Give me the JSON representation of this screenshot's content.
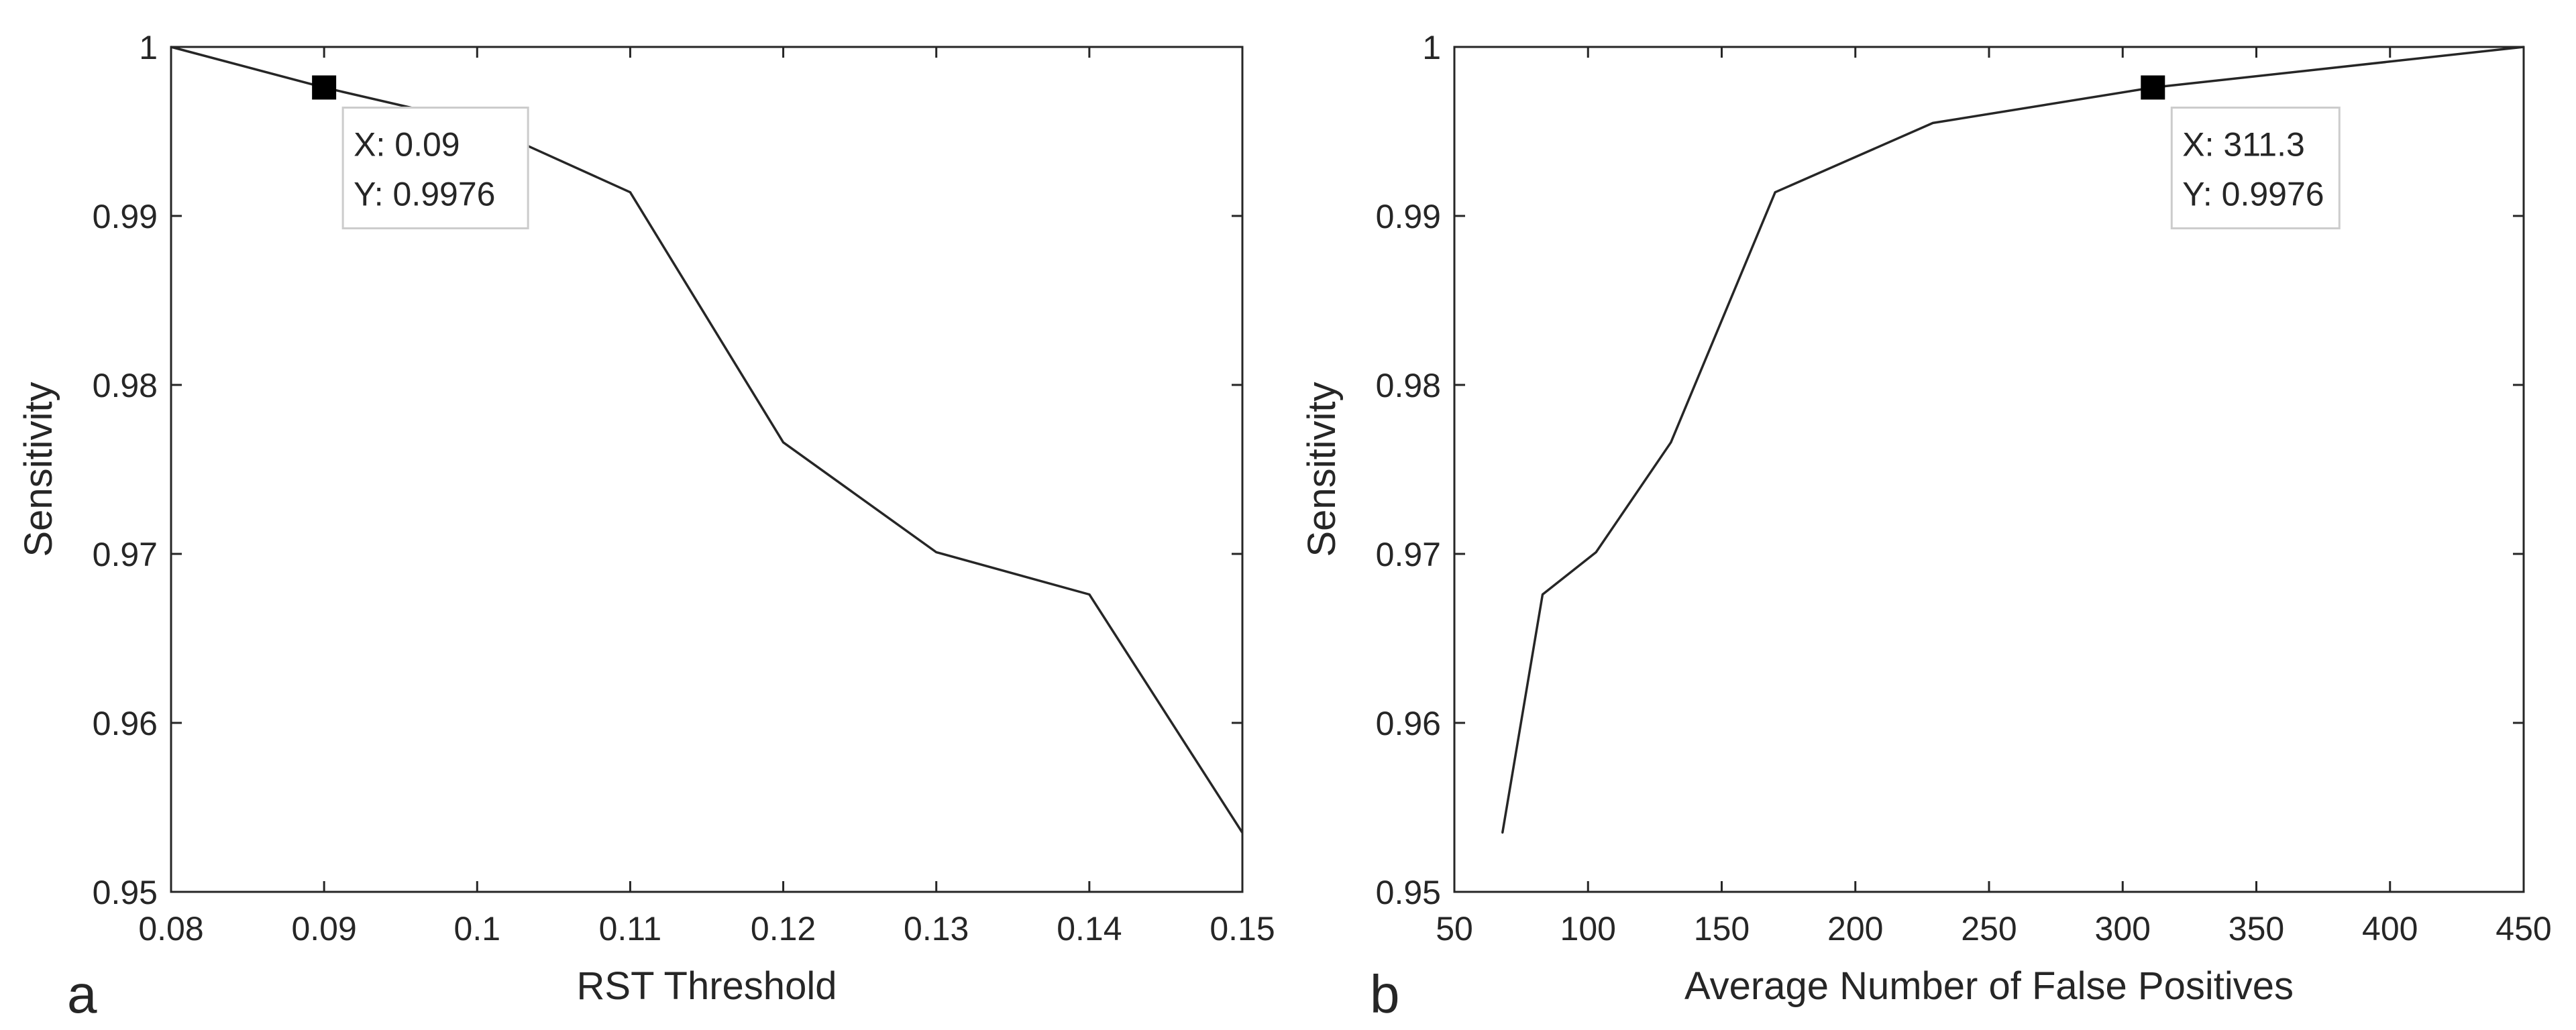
{
  "chart_data": [
    {
      "type": "line",
      "panel_label": "a",
      "xlabel": "RST Threshold",
      "ylabel": "Sensitivity",
      "xlim": [
        0.08,
        0.15
      ],
      "ylim": [
        0.95,
        1.0
      ],
      "x_ticks": [
        0.08,
        0.09,
        0.1,
        0.11,
        0.12,
        0.13,
        0.14,
        0.15
      ],
      "x_tick_labels": [
        "0.08",
        "0.09",
        "0.1",
        "0.11",
        "0.12",
        "0.13",
        "0.14",
        "0.15"
      ],
      "y_ticks": [
        0.95,
        0.96,
        0.97,
        0.98,
        0.99,
        1.0
      ],
      "y_tick_labels": [
        "0.95",
        "0.96",
        "0.97",
        "0.98",
        "0.99",
        "1"
      ],
      "grid": false,
      "line_color": "#262626",
      "series": [
        {
          "x": [
            0.08,
            0.09,
            0.1,
            0.11,
            0.12,
            0.13,
            0.14,
            0.15
          ],
          "y": [
            1.0,
            0.9976,
            0.9955,
            0.9914,
            0.9766,
            0.9701,
            0.9676,
            0.9535
          ]
        }
      ],
      "datatip": {
        "x": 0.09,
        "y": 0.9976,
        "x_text": "X: 0.09",
        "y_text": "Y: 0.9976"
      }
    },
    {
      "type": "line",
      "panel_label": "b",
      "xlabel": "Average Number of False Positives",
      "ylabel": "Sensitivity",
      "xlim": [
        50,
        450
      ],
      "ylim": [
        0.95,
        1.0
      ],
      "x_ticks": [
        50,
        100,
        150,
        200,
        250,
        300,
        350,
        400,
        450
      ],
      "x_tick_labels": [
        "50",
        "100",
        "150",
        "200",
        "250",
        "300",
        "350",
        "400",
        "450"
      ],
      "y_ticks": [
        0.95,
        0.96,
        0.97,
        0.98,
        0.99,
        1.0
      ],
      "y_tick_labels": [
        "0.95",
        "0.96",
        "0.97",
        "0.98",
        "0.99",
        "1"
      ],
      "grid": false,
      "line_color": "#262626",
      "series": [
        {
          "x": [
            68,
            83,
            103,
            131,
            170,
            229,
            311.3,
            450
          ],
          "y": [
            0.9535,
            0.9676,
            0.9701,
            0.9766,
            0.9914,
            0.9955,
            0.9976,
            1.0
          ]
        }
      ],
      "datatip": {
        "x": 311.3,
        "y": 0.9976,
        "x_text": "X: 311.3",
        "y_text": "Y: 0.9976"
      }
    }
  ]
}
